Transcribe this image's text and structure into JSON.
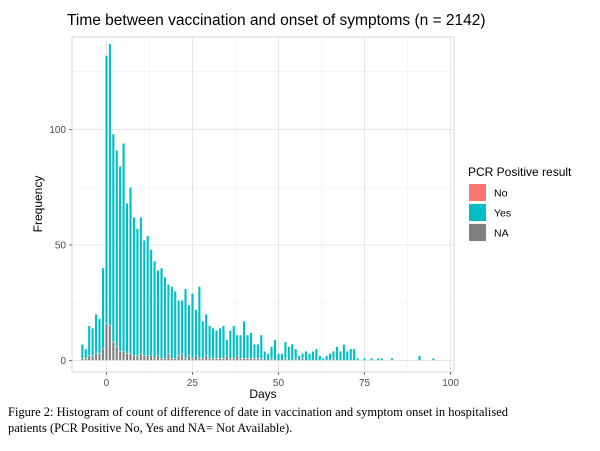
{
  "chart_data": {
    "type": "bar",
    "title": "Time between vaccination and onset of symptoms (n = 2142)",
    "xlabel": "Days",
    "ylabel": "Frequency",
    "xlim": [
      -10,
      101
    ],
    "ylim": [
      -5,
      140
    ],
    "x_ticks": [
      0,
      25,
      50,
      75,
      100
    ],
    "y_ticks": [
      0,
      50,
      100
    ],
    "grid": true,
    "stacked": true,
    "legend": {
      "title": "PCR Positive result",
      "position": "right",
      "entries": [
        {
          "label": "No",
          "color": "#F8766D"
        },
        {
          "label": "Yes",
          "color": "#00BFC4"
        },
        {
          "label": "NA",
          "color": "#7F7F7F"
        }
      ]
    },
    "x": [
      -7,
      -6,
      -5,
      -4,
      -3,
      -2,
      -1,
      0,
      1,
      2,
      3,
      4,
      5,
      6,
      7,
      8,
      9,
      10,
      11,
      12,
      13,
      14,
      15,
      16,
      17,
      18,
      19,
      20,
      21,
      22,
      23,
      24,
      25,
      26,
      27,
      28,
      29,
      30,
      31,
      32,
      33,
      34,
      35,
      36,
      37,
      38,
      39,
      40,
      41,
      42,
      43,
      44,
      45,
      46,
      47,
      48,
      49,
      50,
      51,
      52,
      53,
      54,
      55,
      56,
      57,
      58,
      59,
      60,
      61,
      62,
      63,
      64,
      65,
      66,
      67,
      68,
      69,
      70,
      71,
      72,
      73,
      74,
      75,
      76,
      77,
      78,
      79,
      80,
      81,
      82,
      83,
      84,
      85,
      86,
      87,
      88,
      89,
      90,
      91,
      92,
      93,
      94,
      95
    ],
    "series": [
      {
        "name": "No",
        "values": [
          0,
          0,
          0,
          0,
          0,
          0,
          0,
          0,
          0,
          0,
          0,
          0,
          0,
          0,
          0,
          0,
          0,
          0,
          0,
          0,
          0,
          0,
          0,
          0,
          0,
          0,
          0,
          0,
          0,
          0,
          0,
          0,
          0,
          0,
          0,
          0,
          0,
          0,
          0,
          0,
          0,
          0,
          0,
          0,
          0,
          0,
          0,
          0,
          0,
          0,
          0,
          0,
          0,
          0,
          0,
          0,
          0,
          0,
          0,
          0,
          0,
          0,
          0,
          0,
          0,
          0,
          0,
          0,
          0,
          0,
          0,
          0,
          0,
          0,
          0,
          0,
          0,
          0,
          0,
          0,
          0,
          0,
          0,
          0,
          0,
          0,
          0,
          0,
          0,
          0,
          0,
          0,
          0,
          0,
          0,
          0,
          0,
          0,
          0,
          0,
          0,
          0,
          0
        ]
      },
      {
        "name": "Yes",
        "values": [
          6,
          4,
          13,
          12,
          17,
          15,
          35,
          116,
          122,
          90,
          85,
          80,
          90,
          65,
          72,
          60,
          55,
          59,
          50,
          52,
          46,
          42,
          37,
          39,
          35,
          30,
          31,
          29,
          24,
          23,
          30,
          22,
          28,
          20,
          31,
          16,
          18,
          14,
          13,
          12,
          13,
          14,
          7,
          12,
          14,
          9,
          10,
          16,
          10,
          11,
          6,
          6,
          10,
          4,
          3,
          5,
          9,
          3,
          3,
          7,
          6,
          7,
          4,
          2,
          2,
          4,
          3,
          4,
          5,
          2,
          1,
          2,
          3,
          3,
          6,
          4,
          7,
          4,
          5,
          5,
          1,
          0,
          1,
          0,
          1,
          0,
          1,
          1,
          0,
          0,
          1,
          0,
          0,
          0,
          0,
          0,
          0,
          0,
          2,
          0,
          0,
          0,
          1
        ]
      },
      {
        "name": "NA",
        "values": [
          1,
          1,
          2,
          2,
          3,
          3,
          5,
          16,
          15,
          8,
          6,
          4,
          4,
          3,
          3,
          2,
          2,
          3,
          2,
          2,
          2,
          1,
          2,
          1,
          1,
          3,
          1,
          1,
          2,
          3,
          1,
          2,
          1,
          2,
          1,
          1,
          2,
          1,
          1,
          1,
          1,
          1,
          2,
          1,
          1,
          2,
          1,
          1,
          1,
          1,
          1,
          1,
          1,
          0,
          0,
          1,
          0,
          0,
          0,
          1,
          0,
          0,
          1,
          0,
          1,
          0,
          0,
          0,
          0,
          0,
          0,
          0,
          0,
          1,
          0,
          0,
          0,
          0,
          0,
          0,
          0,
          0,
          0,
          0,
          0,
          0,
          0,
          0,
          0,
          0,
          0,
          0,
          0,
          0,
          0,
          0,
          0,
          0,
          0,
          0,
          0,
          0,
          0
        ]
      }
    ]
  },
  "caption": {
    "line1": "Figure 2: Histogram of count of difference of date in vaccination and symptom onset in hospitalised",
    "line2": "patients (PCR Positive No, Yes and NA= Not Available)."
  }
}
